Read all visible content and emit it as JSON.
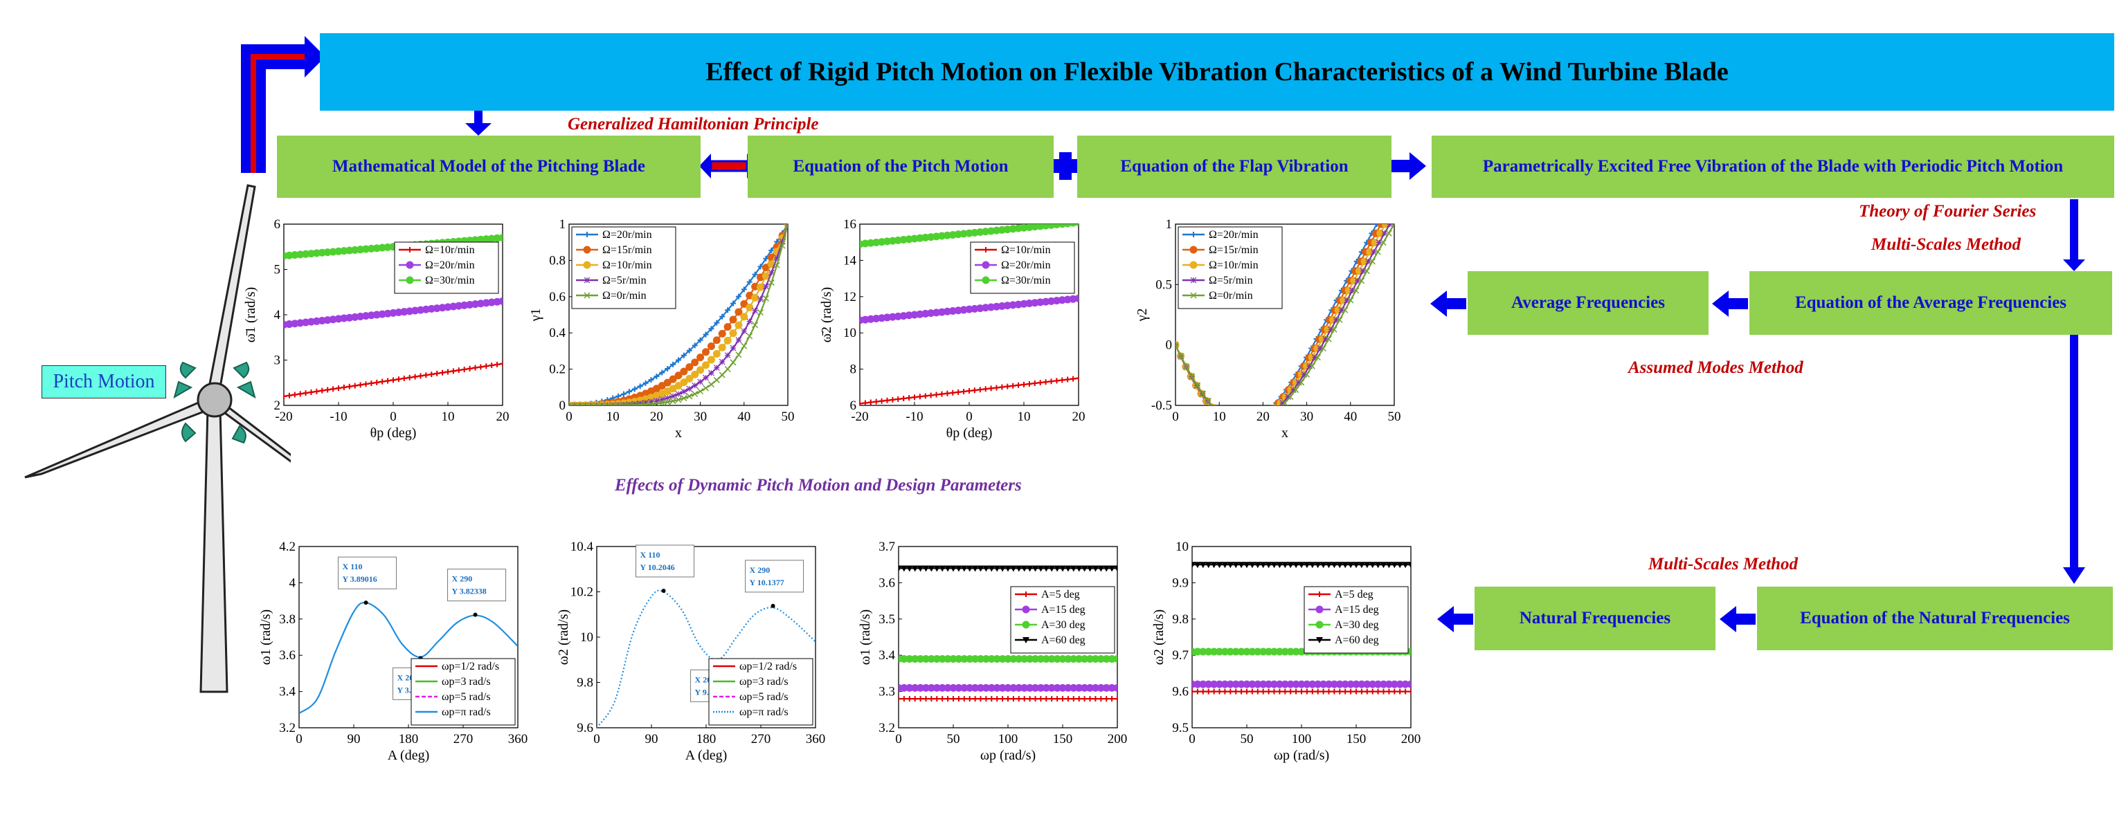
{
  "title": "Effect of Rigid Pitch Motion on Flexible Vibration Characteristics of a Wind Turbine Blade",
  "boxes": {
    "math_model": "Mathematical Model of the Pitching Blade",
    "pitch_eq": "Equation of the Pitch Motion",
    "flap_eq": "Equation of the Flap Vibration",
    "param_excited": "Parametrically Excited Free Vibration of the Blade with Periodic Pitch Motion",
    "avg_freq_eq": "Equation of the Average Frequencies",
    "avg_freq": "Average Frequencies",
    "nat_freq_eq": "Equation of the Natural Frequencies",
    "nat_freq": "Natural Frequencies"
  },
  "methods": {
    "hamiltonian": "Generalized Hamiltonian Principle",
    "fourier": "Theory of Fourier Series",
    "multi_scales_1": "Multi-Scales Method",
    "assumed_modes": "Assumed Modes Method",
    "multi_scales_2": "Multi-Scales Method"
  },
  "effects_label": "Effects of Dynamic Pitch Motion and Design Parameters",
  "pitch_motion_label": "Pitch Motion",
  "colors": {
    "title_bg": "#00b0f0",
    "box_bg": "#92d050",
    "box_text": "#1010d0",
    "arrow": "#0000ee",
    "method": "#c00000",
    "effects": "#7030a0"
  },
  "chart_data": [
    {
      "type": "line",
      "xlabel": "θp (deg)",
      "ylabel": "ω̄1 (rad/s)",
      "xlim": [
        -20,
        20
      ],
      "ylim": [
        2,
        6
      ],
      "xticks": [
        -20,
        -10,
        0,
        10,
        20
      ],
      "yticks": [
        2,
        3,
        4,
        5,
        6
      ],
      "legend_position": "right",
      "series": [
        {
          "name": "Ω=10r/min",
          "color": "#e00000",
          "marker": "plus",
          "x": [
            -20,
            20
          ],
          "y": [
            2.2,
            2.92
          ]
        },
        {
          "name": "Ω=20r/min",
          "color": "#a040e0",
          "marker": "circle",
          "x": [
            -20,
            20
          ],
          "y": [
            3.78,
            4.3
          ]
        },
        {
          "name": "Ω=30r/min",
          "color": "#50d030",
          "marker": "circle",
          "x": [
            -20,
            20
          ],
          "y": [
            5.3,
            5.7
          ]
        }
      ]
    },
    {
      "type": "line",
      "xlabel": "x",
      "ylabel": "γ1",
      "xlim": [
        0,
        50
      ],
      "ylim": [
        0,
        1
      ],
      "xticks": [
        0,
        10,
        20,
        30,
        40,
        50
      ],
      "yticks": [
        0,
        0.2,
        0.4,
        0.6,
        0.8,
        1
      ],
      "legend_position": "top-left",
      "series": [
        {
          "name": "Ω=20r/min",
          "color": "#1f77d0",
          "marker": "plus",
          "p": 2.0
        },
        {
          "name": "Ω=15r/min",
          "color": "#e06010",
          "marker": "circle",
          "p": 2.6
        },
        {
          "name": "Ω=10r/min",
          "color": "#e8b020",
          "marker": "circle",
          "p": 3.2
        },
        {
          "name": "Ω=5r/min",
          "color": "#8030b0",
          "marker": "star",
          "p": 4.0
        },
        {
          "name": "Ω=0r/min",
          "color": "#70a030",
          "marker": "cross",
          "p": 5.0
        }
      ]
    },
    {
      "type": "line",
      "xlabel": "θp (deg)",
      "ylabel": "ω̄2 (rad/s)",
      "xlim": [
        -20,
        20
      ],
      "ylim": [
        6,
        16
      ],
      "xticks": [
        -20,
        -10,
        0,
        10,
        20
      ],
      "yticks": [
        6,
        8,
        10,
        12,
        14,
        16
      ],
      "legend_position": "right",
      "series": [
        {
          "name": "Ω=10r/min",
          "color": "#e00000",
          "marker": "plus",
          "x": [
            -20,
            20
          ],
          "y": [
            6.1,
            7.5
          ]
        },
        {
          "name": "Ω=20r/min",
          "color": "#a040e0",
          "marker": "circle",
          "x": [
            -20,
            20
          ],
          "y": [
            10.7,
            11.9
          ]
        },
        {
          "name": "Ω=30r/min",
          "color": "#50d030",
          "marker": "circle",
          "x": [
            -20,
            20
          ],
          "y": [
            14.9,
            16.1
          ]
        }
      ]
    },
    {
      "type": "line",
      "xlabel": "x",
      "ylabel": "γ2",
      "xlim": [
        0,
        50
      ],
      "ylim": [
        -0.5,
        1
      ],
      "xticks": [
        0,
        10,
        20,
        30,
        40,
        50
      ],
      "yticks": [
        -0.5,
        0,
        0.5,
        1
      ],
      "legend_position": "top-left",
      "series": [
        {
          "name": "Ω=20r/min",
          "color": "#1f77d0",
          "marker": "plus",
          "L": 46
        },
        {
          "name": "Ω=15r/min",
          "color": "#e06010",
          "marker": "circle",
          "L": 47
        },
        {
          "name": "Ω=10r/min",
          "color": "#e8b020",
          "marker": "circle",
          "L": 48
        },
        {
          "name": "Ω=5r/min",
          "color": "#8030b0",
          "marker": "star",
          "L": 49
        },
        {
          "name": "Ω=0r/min",
          "color": "#70a030",
          "marker": "cross",
          "L": 50
        }
      ]
    },
    {
      "type": "line",
      "xlabel": "A (deg)",
      "ylabel": "ω1 (rad/s)",
      "xlim": [
        0,
        360
      ],
      "ylim": [
        3.2,
        4.2
      ],
      "xticks": [
        0,
        90,
        180,
        270,
        360
      ],
      "yticks": [
        3.2,
        3.4,
        3.6,
        3.8,
        4,
        4.2
      ],
      "legend_position": "bottom-right",
      "series": [
        {
          "name": "ωp=1/2 rad/s",
          "color": "#e00000",
          "style": "solid"
        },
        {
          "name": "ωp=3 rad/s",
          "color": "#40c020",
          "style": "solid"
        },
        {
          "name": "ωp=5 rad/s",
          "color": "#e020e0",
          "style": "dashed"
        },
        {
          "name": "ωp=π rad/s",
          "color": "#1f8fe0",
          "style": "solid",
          "x": [
            0,
            30,
            60,
            90,
            110,
            140,
            170,
            200,
            230,
            260,
            290,
            320,
            360
          ],
          "y": [
            3.28,
            3.36,
            3.62,
            3.84,
            3.89,
            3.82,
            3.66,
            3.59,
            3.68,
            3.78,
            3.82,
            3.78,
            3.65
          ]
        }
      ],
      "datatips": [
        {
          "x": "110",
          "y": "3.89016"
        },
        {
          "x": "200",
          "y": "3.58421"
        },
        {
          "x": "290",
          "y": "3.82338"
        }
      ]
    },
    {
      "type": "line",
      "xlabel": "A (deg)",
      "ylabel": "ω2 (rad/s)",
      "xlim": [
        0,
        360
      ],
      "ylim": [
        9.6,
        10.4
      ],
      "xticks": [
        0,
        90,
        180,
        270,
        360
      ],
      "yticks": [
        9.6,
        9.8,
        10,
        10.2,
        10.4
      ],
      "legend_position": "bottom-right",
      "series": [
        {
          "name": "ωp=1/2 rad/s",
          "color": "#e00000",
          "style": "solid"
        },
        {
          "name": "ωp=3 rad/s",
          "color": "#40c020",
          "style": "solid"
        },
        {
          "name": "ωp=5 rad/s",
          "color": "#e020e0",
          "style": "dashed"
        },
        {
          "name": "ωp=π rad/s",
          "color": "#1f8fe0",
          "style": "dotted",
          "x": [
            0,
            30,
            60,
            90,
            110,
            140,
            170,
            200,
            230,
            260,
            290,
            320,
            360
          ],
          "y": [
            9.6,
            9.72,
            10.02,
            10.18,
            10.2,
            10.12,
            9.96,
            9.9,
            10.0,
            10.1,
            10.13,
            10.08,
            9.98
          ]
        }
      ],
      "datatips": [
        {
          "x": "110",
          "y": "10.2046"
        },
        {
          "x": "200",
          "y": "9.89831"
        },
        {
          "x": "290",
          "y": "10.1377"
        }
      ]
    },
    {
      "type": "line",
      "xlabel": "ωp (rad/s)",
      "ylabel": "ω1 (rad/s)",
      "xlim": [
        0,
        200
      ],
      "ylim": [
        3.2,
        3.7
      ],
      "xticks": [
        0,
        50,
        100,
        150,
        200
      ],
      "yticks": [
        3.2,
        3.3,
        3.4,
        3.5,
        3.6,
        3.7
      ],
      "legend_position": "top-right",
      "series": [
        {
          "name": "A=5 deg",
          "color": "#e00000",
          "marker": "plus",
          "x": [
            0,
            200
          ],
          "y": [
            3.28,
            3.28
          ]
        },
        {
          "name": "A=15 deg",
          "color": "#a040e0",
          "marker": "circle",
          "x": [
            0,
            200
          ],
          "y": [
            3.31,
            3.31
          ]
        },
        {
          "name": "A=30 deg",
          "color": "#50d030",
          "marker": "circle",
          "x": [
            0,
            200
          ],
          "y": [
            3.39,
            3.39
          ]
        },
        {
          "name": "A=60 deg",
          "color": "#000000",
          "marker": "triangle",
          "x": [
            0,
            200
          ],
          "y": [
            3.64,
            3.64
          ]
        }
      ]
    },
    {
      "type": "line",
      "xlabel": "ωp (rad/s)",
      "ylabel": "ω2 (rad/s)",
      "xlim": [
        0,
        200
      ],
      "ylim": [
        9.5,
        10
      ],
      "xticks": [
        0,
        50,
        100,
        150,
        200
      ],
      "yticks": [
        9.5,
        9.6,
        9.7,
        9.8,
        9.9,
        10
      ],
      "legend_position": "top-right",
      "series": [
        {
          "name": "A=5 deg",
          "color": "#e00000",
          "marker": "plus",
          "x": [
            0,
            200
          ],
          "y": [
            9.6,
            9.6
          ]
        },
        {
          "name": "A=15 deg",
          "color": "#a040e0",
          "marker": "circle",
          "x": [
            0,
            200
          ],
          "y": [
            9.62,
            9.62
          ]
        },
        {
          "name": "A=30 deg",
          "color": "#50d030",
          "marker": "circle",
          "x": [
            0,
            200
          ],
          "y": [
            9.71,
            9.71
          ]
        },
        {
          "name": "A=60 deg",
          "color": "#000000",
          "marker": "triangle",
          "x": [
            0,
            200
          ],
          "y": [
            9.95,
            9.95
          ]
        }
      ]
    }
  ]
}
